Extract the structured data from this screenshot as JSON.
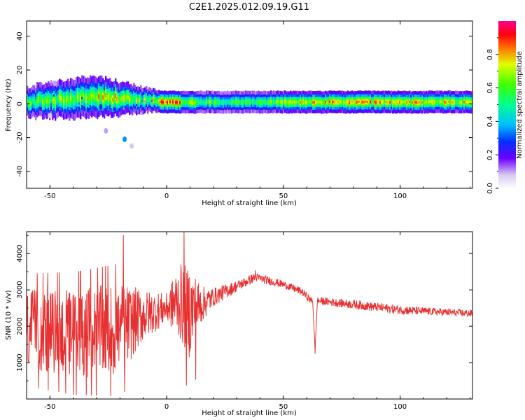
{
  "title": "C2E1.2025.012.09.19.G11",
  "chart_data": [
    {
      "type": "heatmap",
      "xlabel": "Height of straight line (km)",
      "ylabel": "Frequency (Hz)",
      "xlim": [
        -60,
        131
      ],
      "ylim": [
        -50,
        49
      ],
      "xticks": [
        -50,
        0,
        50,
        100
      ],
      "yticks": [
        -40,
        -20,
        0,
        20,
        40
      ],
      "ridge": [
        {
          "x": -60,
          "f": 0.5,
          "w": 4.0,
          "a": 0.55
        },
        {
          "x": -55,
          "f": 1.5,
          "w": 4.5,
          "a": 0.6
        },
        {
          "x": -50,
          "f": 2.0,
          "w": 5.0,
          "a": 0.55
        },
        {
          "x": -45,
          "f": 2.5,
          "w": 5.0,
          "a": 0.6
        },
        {
          "x": -40,
          "f": 3.0,
          "w": 5.5,
          "a": 0.6
        },
        {
          "x": -35,
          "f": 3.5,
          "w": 5.5,
          "a": 0.65
        },
        {
          "x": -30,
          "f": 4.0,
          "w": 5.5,
          "a": 0.7
        },
        {
          "x": -25,
          "f": 3.5,
          "w": 5.0,
          "a": 0.75
        },
        {
          "x": -20,
          "f": 3.0,
          "w": 4.5,
          "a": 0.7
        },
        {
          "x": -15,
          "f": 2.5,
          "w": 4.0,
          "a": 0.65
        },
        {
          "x": -10,
          "f": 2.0,
          "w": 3.5,
          "a": 0.6
        },
        {
          "x": -5,
          "f": 1.5,
          "w": 3.0,
          "a": 0.65
        },
        {
          "x": 0,
          "f": 1.0,
          "w": 3.0,
          "a": 0.9
        },
        {
          "x": 5,
          "f": 1.0,
          "w": 3.0,
          "a": 0.75
        },
        {
          "x": 10,
          "f": 1.0,
          "w": 3.0,
          "a": 0.65
        },
        {
          "x": 20,
          "f": 1.0,
          "w": 3.0,
          "a": 0.55
        },
        {
          "x": 40,
          "f": 1.0,
          "w": 3.0,
          "a": 0.55
        },
        {
          "x": 60,
          "f": 1.0,
          "w": 3.0,
          "a": 0.7
        },
        {
          "x": 80,
          "f": 1.0,
          "w": 3.0,
          "a": 0.75
        },
        {
          "x": 100,
          "f": 1.0,
          "w": 3.0,
          "a": 0.7
        },
        {
          "x": 120,
          "f": 1.0,
          "w": 3.0,
          "a": 0.7
        },
        {
          "x": 131,
          "f": 1.0,
          "w": 3.0,
          "a": 0.7
        }
      ],
      "spots": [
        {
          "x": -18,
          "f": -21,
          "a": 0.35
        },
        {
          "x": -26,
          "f": -16,
          "a": 0.1
        },
        {
          "x": -15,
          "f": -25,
          "a": 0.08
        },
        {
          "x": -50,
          "f": -7,
          "a": 0.08
        },
        {
          "x": -48,
          "f": 12,
          "a": 0.1
        }
      ],
      "colorbar": {
        "label": "Normalized spectral amplitude",
        "range": [
          0,
          1
        ],
        "ticks": [
          0.0,
          0.2,
          0.4,
          0.6,
          0.8
        ]
      }
    },
    {
      "type": "line",
      "xlabel": "Height of straight line (km)",
      "ylabel": "SNR (10 * v/v)",
      "xlim": [
        -60,
        131
      ],
      "ylim": [
        0,
        4600
      ],
      "xticks": [
        -50,
        0,
        50,
        100
      ],
      "yticks": [
        1000,
        2000,
        3000,
        4000
      ],
      "color": "#e83030",
      "series_trend": [
        {
          "x": -60,
          "y": 1900,
          "amp": 1100
        },
        {
          "x": -40,
          "y": 1800,
          "amp": 1200
        },
        {
          "x": -20,
          "y": 1900,
          "amp": 1300
        },
        {
          "x": -10,
          "y": 2300,
          "amp": 700
        },
        {
          "x": 0,
          "y": 2500,
          "amp": 400
        },
        {
          "x": 5,
          "y": 2700,
          "amp": 1000
        },
        {
          "x": 10,
          "y": 2400,
          "amp": 1300
        },
        {
          "x": 15,
          "y": 2600,
          "amp": 500
        },
        {
          "x": 20,
          "y": 2800,
          "amp": 250
        },
        {
          "x": 30,
          "y": 3100,
          "amp": 150
        },
        {
          "x": 38,
          "y": 3350,
          "amp": 120
        },
        {
          "x": 50,
          "y": 3150,
          "amp": 100
        },
        {
          "x": 58,
          "y": 2950,
          "amp": 100
        },
        {
          "x": 62,
          "y": 2700,
          "amp": 100
        },
        {
          "x": 65,
          "y": 2700,
          "amp": 100
        },
        {
          "x": 80,
          "y": 2600,
          "amp": 120
        },
        {
          "x": 100,
          "y": 2450,
          "amp": 120
        },
        {
          "x": 115,
          "y": 2400,
          "amp": 100
        },
        {
          "x": 131,
          "y": 2350,
          "amp": 100
        }
      ],
      "events": [
        {
          "x": -18.5,
          "y": 4500
        },
        {
          "x": -18,
          "y": 200
        },
        {
          "x": 7.5,
          "y": 4600
        },
        {
          "x": 8.5,
          "y": 380
        },
        {
          "x": 12.5,
          "y": 540
        },
        {
          "x": 63.5,
          "y": 1250
        },
        {
          "x": 38,
          "y": 3530
        }
      ]
    }
  ]
}
